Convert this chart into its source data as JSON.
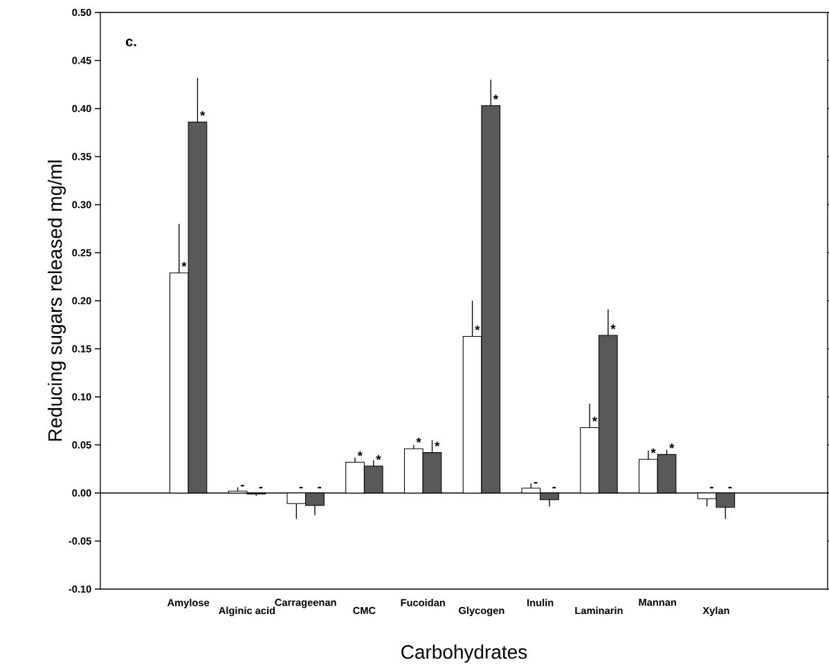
{
  "chart_data": {
    "type": "bar",
    "xlabel": "Carbohydrates",
    "ylabel": "Reducing sugars released mg/ml",
    "annotations": [
      "c."
    ],
    "categories": [
      "Amylose",
      "Alginic acid",
      "Carrageenan",
      "CMC",
      "Fucoidan",
      "Glycogen",
      "Inulin",
      "Laminarin",
      "Mannan",
      "Xylan"
    ],
    "series": [
      {
        "color": "#ffffff",
        "values": [
          0.229,
          0.002,
          -0.011,
          0.032,
          0.046,
          0.163,
          0.005,
          0.068,
          0.035,
          -0.006
        ],
        "errors": [
          [
            0.229,
            0.28
          ],
          [
            0.002,
            0.006
          ],
          [
            -0.027,
            -0.011
          ],
          [
            0.032,
            0.037
          ],
          [
            0.046,
            0.05
          ],
          [
            0.163,
            0.2
          ],
          [
            0.005,
            0.01
          ],
          [
            0.068,
            0.093
          ],
          [
            0.035,
            0.044
          ],
          [
            -0.014,
            -0.006
          ]
        ],
        "value_labels": [
          "*",
          "-",
          "-",
          "*",
          "*",
          "*",
          "-",
          "*",
          "*",
          "-"
        ]
      },
      {
        "color": "#595959",
        "values": [
          0.386,
          -0.001,
          -0.013,
          0.028,
          0.042,
          0.403,
          -0.007,
          0.164,
          0.04,
          -0.015
        ],
        "errors": [
          [
            0.386,
            0.432
          ],
          [
            -0.003,
            -0.001
          ],
          [
            -0.023,
            -0.013
          ],
          [
            0.028,
            0.034
          ],
          [
            0.042,
            0.055
          ],
          [
            0.403,
            0.43
          ],
          [
            -0.014,
            -0.007
          ],
          [
            0.164,
            0.191
          ],
          [
            0.04,
            0.045
          ],
          [
            -0.027,
            -0.015
          ]
        ],
        "value_labels": [
          "*",
          "-",
          "-",
          "*",
          "*",
          "*",
          "-",
          "*",
          "*",
          "-"
        ]
      }
    ],
    "ylim": [
      -0.1,
      0.5
    ],
    "yticks": [
      {
        "value": -0.1,
        "label": "-0.10"
      },
      {
        "value": -0.05,
        "label": "-0.05"
      },
      {
        "value": 0,
        "label": "0.00"
      },
      {
        "value": 0.05,
        "label": "0.05"
      },
      {
        "value": 0.1,
        "label": "0.10"
      },
      {
        "value": 0.15,
        "label": "0.15"
      },
      {
        "value": 0.2,
        "label": "0.20"
      },
      {
        "value": 0.25,
        "label": "0.25"
      },
      {
        "value": 0.3,
        "label": "0.30"
      },
      {
        "value": 0.35,
        "label": "0.35"
      },
      {
        "value": 0.4,
        "label": "0.40"
      },
      {
        "value": 0.45,
        "label": "0.45"
      },
      {
        "value": 0.5,
        "label": "0.50"
      }
    ]
  }
}
